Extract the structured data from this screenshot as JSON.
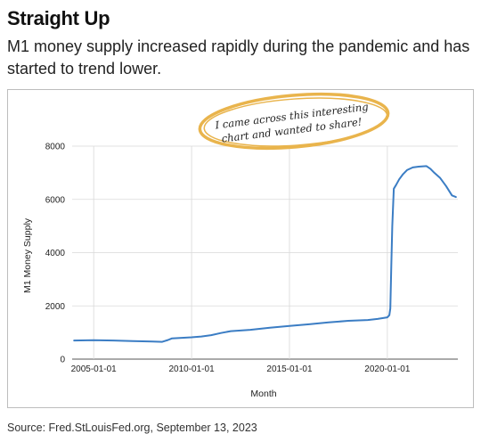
{
  "title": "Straight Up",
  "subtitle": "M1 money supply increased rapidly during the pandemic and has started to trend lower.",
  "source": "Source: Fred.StLouisFed.org, September 13, 2023",
  "annotation": {
    "line1": "I came across this interesting",
    "line2": "chart and wanted to share!",
    "ring_color": "#e9b44c"
  },
  "chart_data": {
    "type": "line",
    "title": "",
    "xlabel": "Month",
    "ylabel": "M1 Money Supply",
    "ylim": [
      0,
      8000
    ],
    "yticks": [
      0,
      2000,
      4000,
      6000,
      8000
    ],
    "xticks": [
      "2005-01-01",
      "2010-01-01",
      "2015-01-01",
      "2020-01-01"
    ],
    "xlim": [
      2003.9,
      2023.6
    ],
    "grid": true,
    "line_color": "#3b7dc4",
    "series": [
      {
        "x": [
          2004.0,
          2005.0,
          2006.0,
          2007.0,
          2008.0,
          2008.5,
          2008.8,
          2009.0,
          2010.0,
          2010.5,
          2011.0,
          2011.5,
          2012.0,
          2013.0,
          2014.0,
          2015.0,
          2016.0,
          2017.0,
          2018.0,
          2019.0,
          2019.5,
          2020.0,
          2020.1,
          2020.15,
          2020.2,
          2020.25,
          2020.33,
          2020.45,
          2020.6,
          2020.8,
          2021.0,
          2021.3,
          2021.6,
          2022.0,
          2022.2,
          2022.4,
          2022.7,
          2023.0,
          2023.3,
          2023.5
        ],
        "y": [
          700,
          710,
          700,
          680,
          660,
          650,
          720,
          780,
          820,
          850,
          900,
          980,
          1050,
          1100,
          1180,
          1250,
          1310,
          1380,
          1440,
          1470,
          1510,
          1570,
          1650,
          1900,
          3500,
          5000,
          6400,
          6550,
          6750,
          6950,
          7100,
          7200,
          7230,
          7250,
          7150,
          7000,
          6800,
          6500,
          6150,
          6090
        ]
      }
    ]
  }
}
